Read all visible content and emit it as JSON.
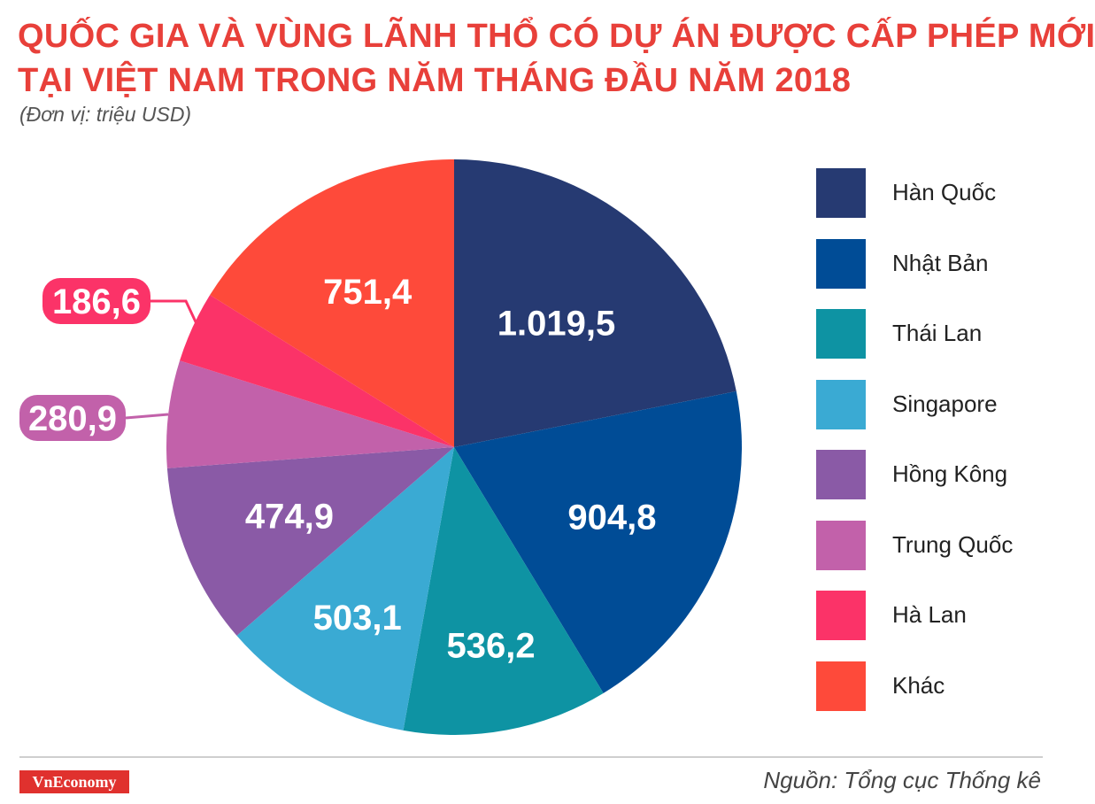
{
  "title": {
    "line1": "QUỐC GIA VÀ VÙNG LÃNH THỔ CÓ DỰ ÁN ĐƯỢC CẤP PHÉP MỚI",
    "line2": "TẠI VIỆT NAM TRONG NĂM THÁNG ĐẦU NĂM 2018"
  },
  "subtitle": "(Đơn vị: triệu USD)",
  "chart_data": {
    "type": "pie",
    "title": "QUỐC GIA VÀ VÙNG LÃNH THỔ CÓ DỰ ÁN ĐƯỢC CẤP PHÉP MỚI TẠI VIỆT NAM TRONG NĂM THÁNG ĐẦU NĂM 2018",
    "unit": "(Đơn vị: triệu USD)",
    "legend_position": "right",
    "slices": [
      {
        "label": "Hàn Quốc",
        "value": 1019.5,
        "display": "1.019,5",
        "color": "#263a72"
      },
      {
        "label": "Nhật Bản",
        "value": 904.8,
        "display": "904,8",
        "color": "#004c96"
      },
      {
        "label": "Thái Lan",
        "value": 536.2,
        "display": "536,2",
        "color": "#0e93a3"
      },
      {
        "label": "Singapore",
        "value": 503.1,
        "display": "503,1",
        "color": "#3aaad3"
      },
      {
        "label": "Hồng Kông",
        "value": 474.9,
        "display": "474,9",
        "color": "#8a5aa6"
      },
      {
        "label": "Trung Quốc",
        "value": 280.9,
        "display": "280,9",
        "color": "#c261aa"
      },
      {
        "label": "Hà Lan",
        "value": 186.6,
        "display": "186,6",
        "color": "#fb3368"
      },
      {
        "label": "Khác",
        "value": 751.4,
        "display": "751,4",
        "color": "#fe4a3a"
      }
    ]
  },
  "footer": {
    "brand": "VnEconomy",
    "source": "Nguồn: Tổng cục Thống kê"
  }
}
